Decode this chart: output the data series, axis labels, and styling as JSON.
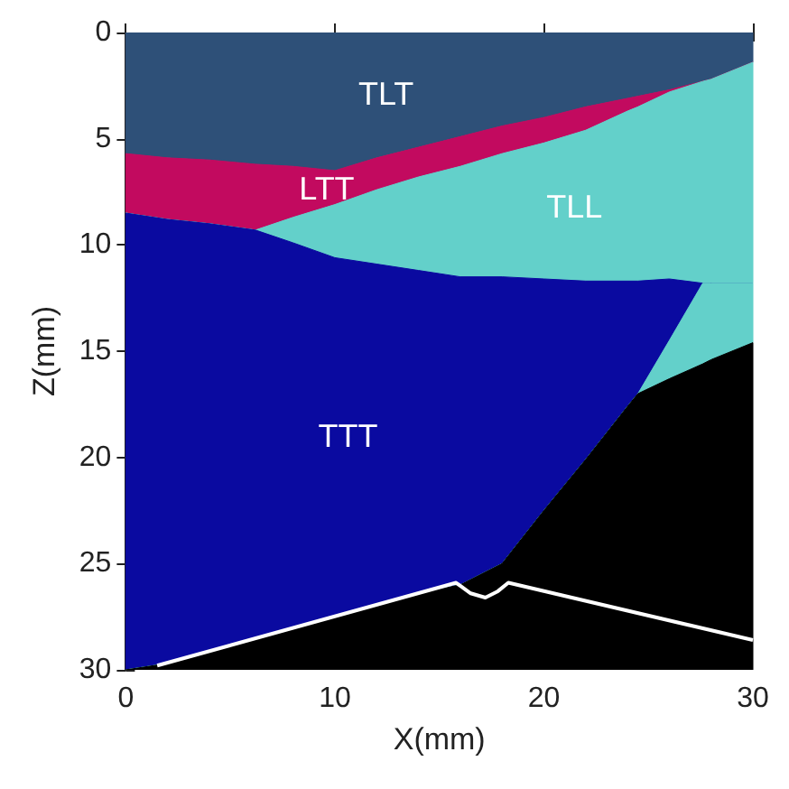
{
  "chart_data": {
    "type": "area",
    "stacked": true,
    "xlabel": "X(mm)",
    "ylabel": "Z(mm)",
    "x": [
      0,
      2,
      4,
      6.2,
      8,
      10,
      12,
      14,
      16,
      18,
      20,
      22,
      24,
      24.5,
      26,
      27.6,
      28,
      30
    ],
    "xlim": [
      0,
      30
    ],
    "xticks": [
      0,
      10,
      20,
      30
    ],
    "ylim": [
      30,
      0
    ],
    "yticks": [
      0,
      5,
      10,
      15,
      20,
      25,
      30
    ],
    "grid": false,
    "marker": "none",
    "series": [
      {
        "name": "TLT",
        "color": "#2e5078",
        "values": [
          5.7,
          5.9,
          6.0,
          6.2,
          6.3,
          6.5,
          5.9,
          5.4,
          4.9,
          4.4,
          4.0,
          3.5,
          3.1,
          3.0,
          2.7,
          2.3,
          2.2,
          1.4
        ]
      },
      {
        "name": "LTT",
        "color": "#c20a5f",
        "values": [
          2.8,
          2.9,
          3.0,
          3.1,
          2.4,
          1.6,
          1.5,
          1.4,
          1.4,
          1.3,
          1.2,
          1.1,
          0.6,
          0.5,
          0.1,
          0,
          0,
          0
        ]
      },
      {
        "name": "TLL",
        "color": "#63d0ca",
        "values": [
          0,
          0,
          0,
          0,
          1.2,
          2.5,
          3.5,
          4.4,
          5.2,
          5.8,
          6.4,
          7.1,
          8.0,
          8.2,
          8.8,
          9.5,
          9.6,
          10.4
        ]
      },
      {
        "name": "TTT",
        "color": "#0a0aa0",
        "values": [
          21.5,
          20.9,
          20.1,
          19.2,
          18.1,
          16.9,
          16.0,
          15.2,
          14.5,
          13.5,
          10.9,
          8.4,
          5.9,
          5.3,
          2.9,
          0,
          0,
          0
        ]
      },
      {
        "color": "#63d0ca",
        "values": [
          0,
          0,
          0,
          0,
          0,
          0,
          0,
          0,
          0,
          0,
          0,
          0,
          0,
          0,
          1.8,
          3.8,
          3.6,
          2.8
        ]
      },
      {
        "color": "#000000",
        "values": [
          0,
          0.3,
          0.9,
          1.5,
          2.0,
          2.5,
          3.1,
          3.6,
          4.0,
          5.0,
          7.5,
          9.9,
          12.4,
          13.0,
          13.7,
          14.4,
          14.6,
          15.4
        ]
      },
      {
        "type": "line",
        "color": "#ffffff",
        "x": [
          1.5,
          15.8,
          16.5,
          17.2,
          17.8,
          18.3,
          30
        ],
        "values": [
          29.8,
          25.9,
          26.4,
          26.6,
          26.3,
          25.9,
          28.6
        ]
      }
    ]
  }
}
